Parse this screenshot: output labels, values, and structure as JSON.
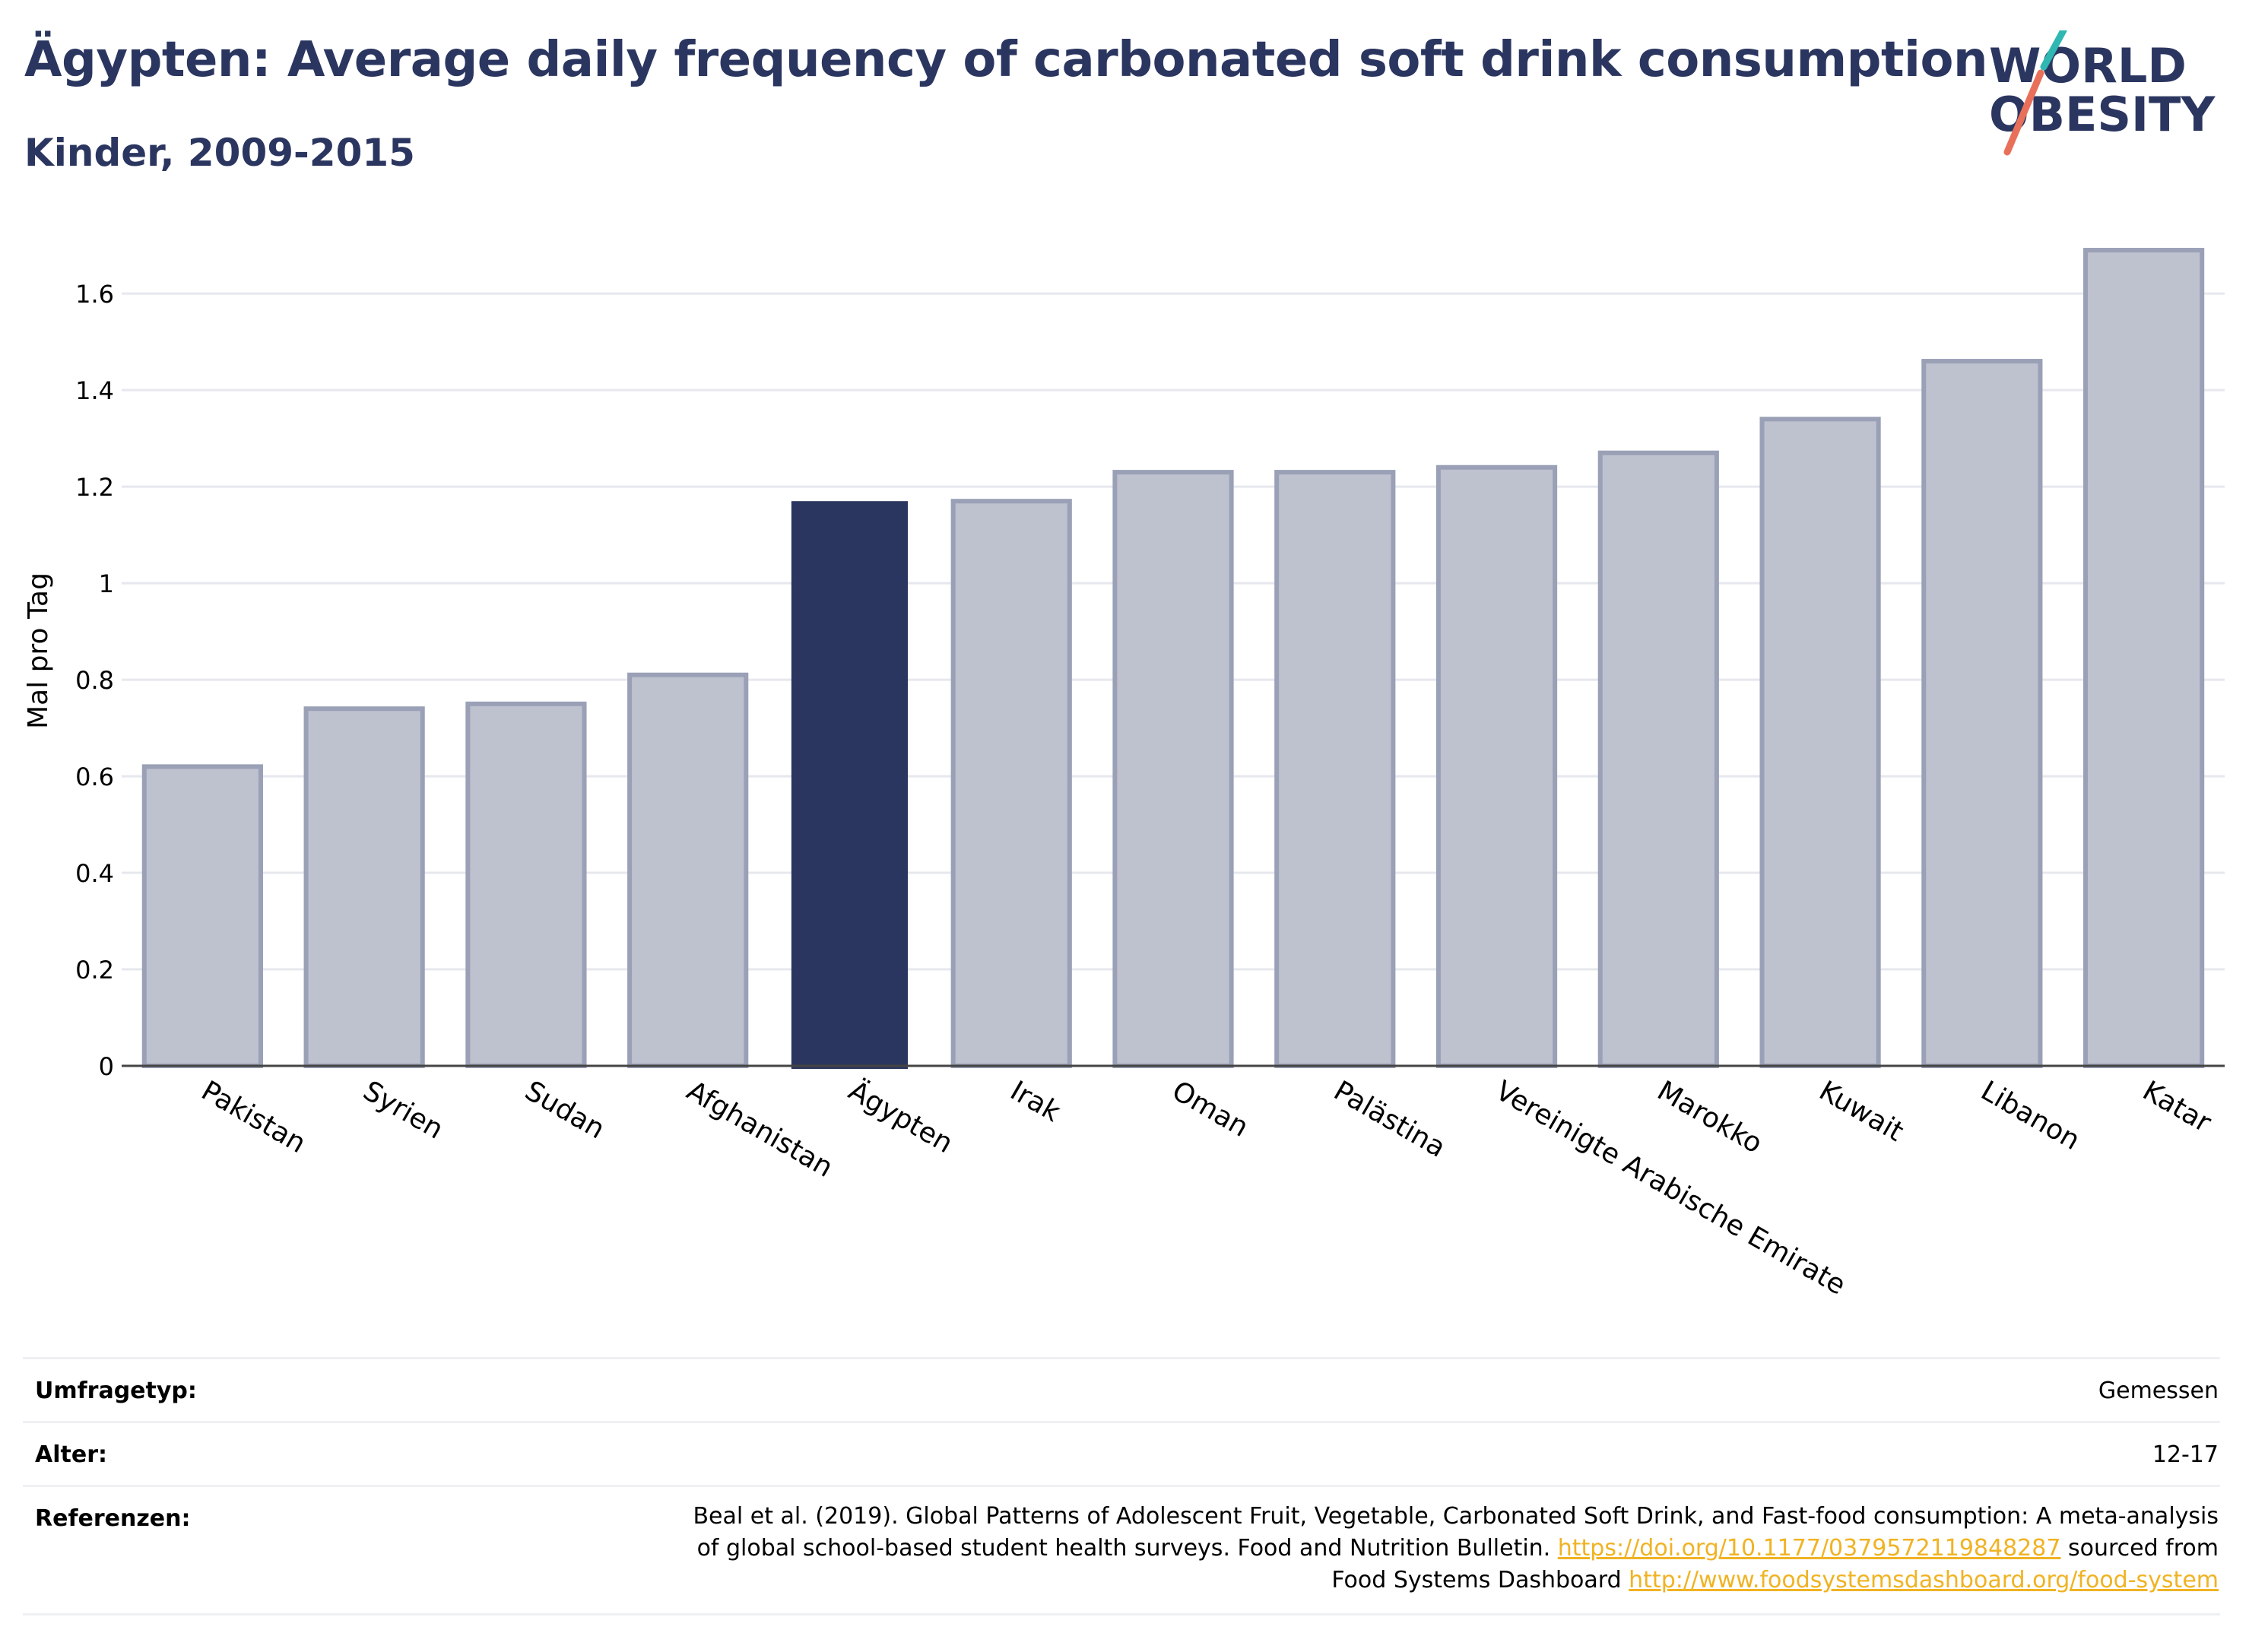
{
  "header": {
    "title": "Ägypten: Average daily frequency of carbonated soft drink consumption",
    "subtitle": "Kinder, 2009-2015"
  },
  "logo": {
    "line1": "WORLD",
    "line2": "OBESITY"
  },
  "colors": {
    "highlight": "#2b3660",
    "bar": "#bec1ce",
    "bar_border": "#9aa0b6",
    "accent_teal": "#2fb8b2",
    "accent_coral": "#e8705b"
  },
  "chart_data": {
    "type": "bar",
    "categories": [
      "Pakistan",
      "Syrien",
      "Sudan",
      "Afghanistan",
      "Ägypten",
      "Irak",
      "Oman",
      "Palästina",
      "Vereinigte Arabische Emirate",
      "Marokko",
      "Kuwait",
      "Libanon",
      "Katar"
    ],
    "values": [
      0.62,
      0.74,
      0.75,
      0.81,
      1.17,
      1.17,
      1.23,
      1.23,
      1.24,
      1.27,
      1.34,
      1.46,
      1.69
    ],
    "highlight": "Ägypten",
    "ylabel": "Mal pro Tag",
    "ylim": [
      0,
      1.72
    ],
    "yticks": [
      0,
      0.2,
      0.4,
      0.6,
      0.8,
      1,
      1.2,
      1.4,
      1.6
    ],
    "grid": true
  },
  "meta": {
    "survey_label": "Umfragetyp:",
    "survey_value": "Gemessen",
    "age_label": "Alter:",
    "age_value": "12-17",
    "ref_label": "Referenzen:",
    "ref_line1": "Beal et al. (2019). Global Patterns of Adolescent Fruit, Vegetable, Carbonated Soft Drink, and Fast-food consumption: A meta-analysis",
    "ref_line2": "of global school-based student health surveys. Food and Nutrition Bulletin. ",
    "ref_link1": "https://doi.org/10.1177/0379572119848287",
    "ref_line2b": " sourced from",
    "ref_line3": "Food Systems Dashboard ",
    "ref_link2": "http://www.foodsystemsdashboard.org/food-system"
  }
}
